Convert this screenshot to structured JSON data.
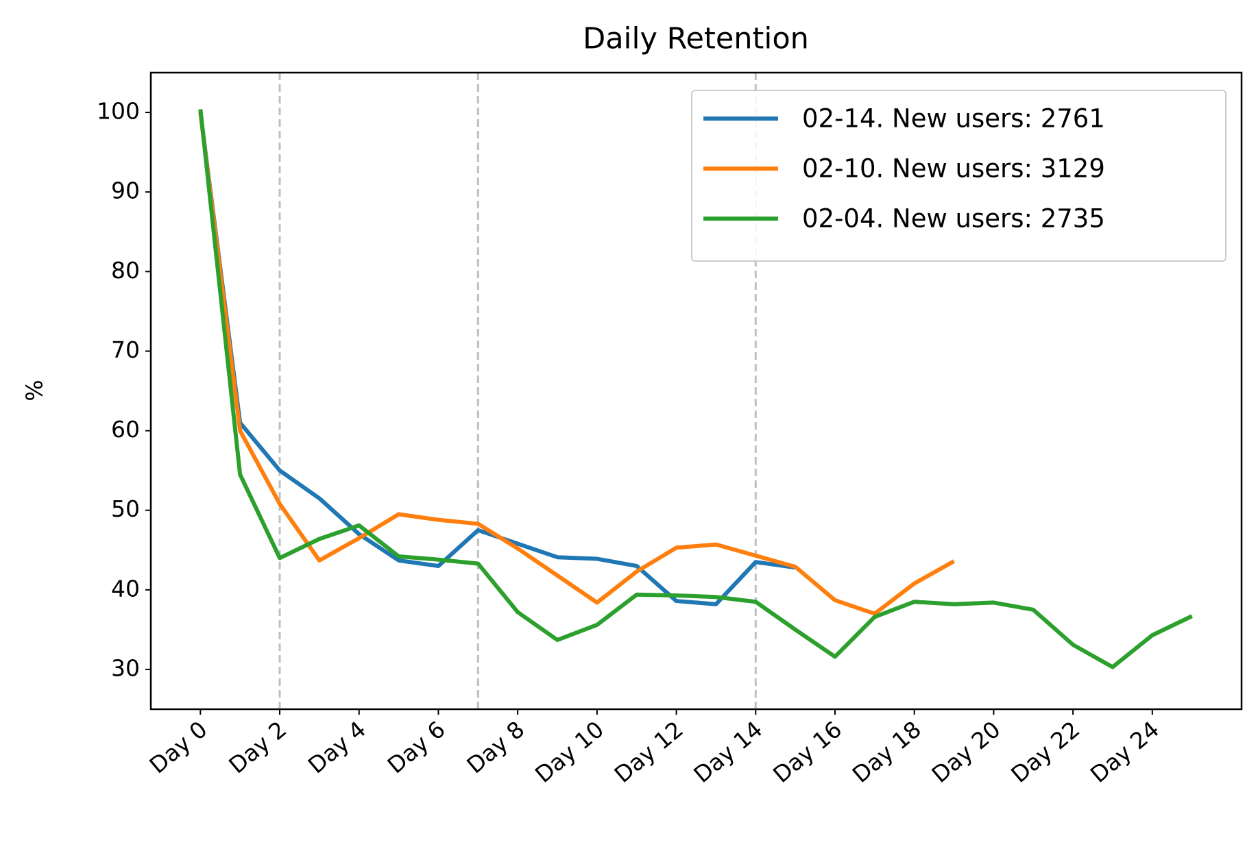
{
  "chart_data": {
    "type": "line",
    "title": "Daily Retention",
    "y_label": "%",
    "x": [
      0,
      1,
      2,
      3,
      4,
      5,
      6,
      7,
      8,
      9,
      10,
      11,
      12,
      13,
      14,
      15,
      16,
      17,
      18,
      19,
      20,
      21,
      22,
      23,
      24,
      25
    ],
    "xlim": [
      -1.25,
      26.25
    ],
    "xticks": [
      {
        "value": 0,
        "label": "Day 0"
      },
      {
        "value": 2,
        "label": "Day 2"
      },
      {
        "value": 4,
        "label": "Day 4"
      },
      {
        "value": 6,
        "label": "Day 6"
      },
      {
        "value": 8,
        "label": "Day 8"
      },
      {
        "value": 10,
        "label": "Day 10"
      },
      {
        "value": 12,
        "label": "Day 12"
      },
      {
        "value": 14,
        "label": "Day 14"
      },
      {
        "value": 16,
        "label": "Day 16"
      },
      {
        "value": 18,
        "label": "Day 18"
      },
      {
        "value": 20,
        "label": "Day 20"
      },
      {
        "value": 22,
        "label": "Day 22"
      },
      {
        "value": 24,
        "label": "Day 24"
      }
    ],
    "ylim": [
      25,
      105
    ],
    "yticks": [
      30,
      40,
      50,
      60,
      70,
      80,
      90,
      100
    ],
    "vlines": [
      2,
      7,
      14
    ],
    "vline_color": "#bfbfbf",
    "legend": "upper right",
    "series": [
      {
        "name": "02-14. New users: 2761",
        "color": "#1f77b4",
        "values": [
          100,
          61,
          55,
          51.5,
          47,
          43.7,
          43,
          47.5,
          45.8,
          44.1,
          43.9,
          43,
          38.6,
          38.2,
          43.5,
          42.8,
          null,
          null,
          null,
          null,
          null,
          null,
          null,
          null,
          null,
          null
        ]
      },
      {
        "name": "02-10. New users: 3129",
        "color": "#ff7f0e",
        "values": [
          100,
          60,
          50.8,
          43.7,
          46.5,
          49.5,
          48.8,
          48.3,
          45.2,
          41.8,
          38.4,
          42.3,
          45.3,
          45.7,
          44.3,
          42.9,
          38.7,
          37,
          40.8,
          43.6,
          null,
          null,
          null,
          null,
          null,
          null
        ]
      },
      {
        "name": "02-04. New users: 2735",
        "color": "#2ca02c",
        "values": [
          100.4,
          54.5,
          44,
          46.4,
          48.1,
          44.2,
          43.8,
          43.3,
          37.2,
          33.7,
          35.6,
          39.4,
          39.3,
          39.1,
          38.5,
          35,
          31.6,
          36.6,
          38.5,
          38.2,
          38.4,
          37.5,
          33.1,
          30.3,
          34.3,
          36.7
        ]
      }
    ]
  }
}
